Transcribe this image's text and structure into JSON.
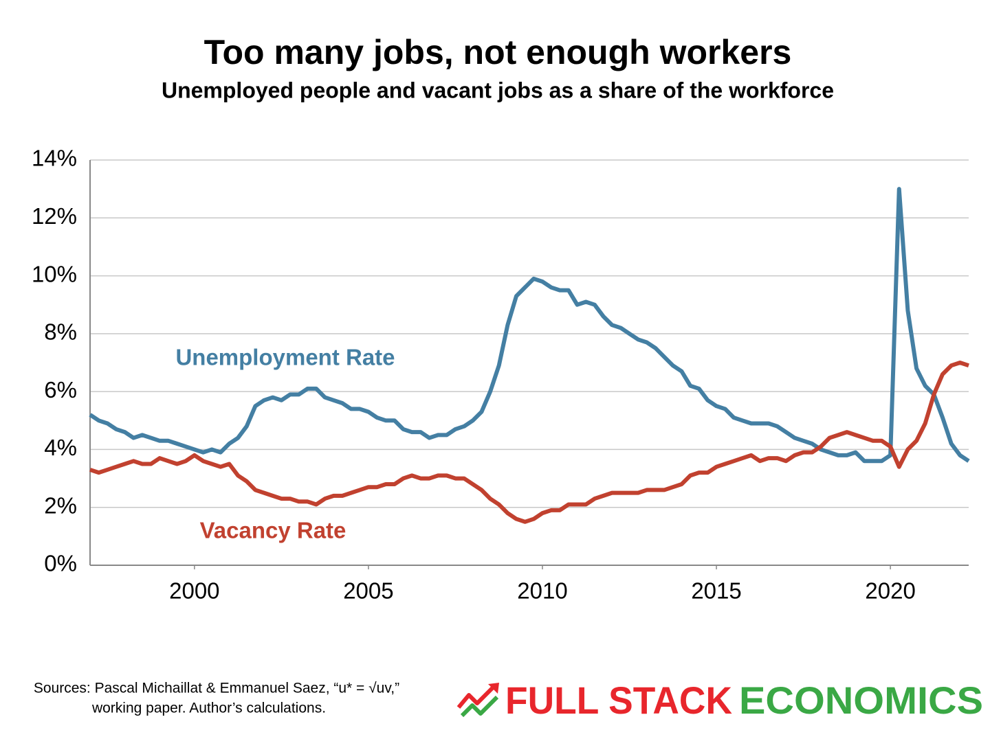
{
  "chart_data": {
    "type": "line",
    "title": "Too many jobs, not enough workers",
    "subtitle": "Unemployed people and vacant jobs as a share of the workforce",
    "x": [
      1997,
      1997.25,
      1997.5,
      1997.75,
      1998,
      1998.25,
      1998.5,
      1998.75,
      1999,
      1999.25,
      1999.5,
      1999.75,
      2000,
      2000.25,
      2000.5,
      2000.75,
      2001,
      2001.25,
      2001.5,
      2001.75,
      2002,
      2002.25,
      2002.5,
      2002.75,
      2003,
      2003.25,
      2003.5,
      2003.75,
      2004,
      2004.25,
      2004.5,
      2004.75,
      2005,
      2005.25,
      2005.5,
      2005.75,
      2006,
      2006.25,
      2006.5,
      2006.75,
      2007,
      2007.25,
      2007.5,
      2007.75,
      2008,
      2008.25,
      2008.5,
      2008.75,
      2009,
      2009.25,
      2009.5,
      2009.75,
      2010,
      2010.25,
      2010.5,
      2010.75,
      2011,
      2011.25,
      2011.5,
      2011.75,
      2012,
      2012.25,
      2012.5,
      2012.75,
      2013,
      2013.25,
      2013.5,
      2013.75,
      2014,
      2014.25,
      2014.5,
      2014.75,
      2015,
      2015.25,
      2015.5,
      2015.75,
      2016,
      2016.25,
      2016.5,
      2016.75,
      2017,
      2017.25,
      2017.5,
      2017.75,
      2018,
      2018.25,
      2018.5,
      2018.75,
      2019,
      2019.25,
      2019.5,
      2019.75,
      2020,
      2020.25,
      2020.5,
      2020.75,
      2021,
      2021.25,
      2021.5,
      2021.75,
      2022,
      2022.25
    ],
    "series": [
      {
        "name": "Unemployment Rate",
        "color": "#447fa3",
        "values": [
          5.2,
          5.0,
          4.9,
          4.7,
          4.6,
          4.4,
          4.5,
          4.4,
          4.3,
          4.3,
          4.2,
          4.1,
          4.0,
          3.9,
          4.0,
          3.9,
          4.2,
          4.4,
          4.8,
          5.5,
          5.7,
          5.8,
          5.7,
          5.9,
          5.9,
          6.1,
          6.1,
          5.8,
          5.7,
          5.6,
          5.4,
          5.4,
          5.3,
          5.1,
          5.0,
          5.0,
          4.7,
          4.6,
          4.6,
          4.4,
          4.5,
          4.5,
          4.7,
          4.8,
          5.0,
          5.3,
          6.0,
          6.9,
          8.3,
          9.3,
          9.6,
          9.9,
          9.8,
          9.6,
          9.5,
          9.5,
          9.0,
          9.1,
          9.0,
          8.6,
          8.3,
          8.2,
          8.0,
          7.8,
          7.7,
          7.5,
          7.2,
          6.9,
          6.7,
          6.2,
          6.1,
          5.7,
          5.5,
          5.4,
          5.1,
          5.0,
          4.9,
          4.9,
          4.9,
          4.8,
          4.6,
          4.4,
          4.3,
          4.2,
          4.0,
          3.9,
          3.8,
          3.8,
          3.9,
          3.6,
          3.6,
          3.6,
          3.8,
          13.0,
          8.8,
          6.8,
          6.2,
          5.9,
          5.1,
          4.2,
          3.8,
          3.6
        ]
      },
      {
        "name": "Vacancy Rate",
        "color": "#c1412f",
        "values": [
          3.3,
          3.2,
          3.3,
          3.4,
          3.5,
          3.6,
          3.5,
          3.5,
          3.7,
          3.6,
          3.5,
          3.6,
          3.8,
          3.6,
          3.5,
          3.4,
          3.5,
          3.1,
          2.9,
          2.6,
          2.5,
          2.4,
          2.3,
          2.3,
          2.2,
          2.2,
          2.1,
          2.3,
          2.4,
          2.4,
          2.5,
          2.6,
          2.7,
          2.7,
          2.8,
          2.8,
          3.0,
          3.1,
          3.0,
          3.0,
          3.1,
          3.1,
          3.0,
          3.0,
          2.8,
          2.6,
          2.3,
          2.1,
          1.8,
          1.6,
          1.5,
          1.6,
          1.8,
          1.9,
          1.9,
          2.1,
          2.1,
          2.1,
          2.3,
          2.4,
          2.5,
          2.5,
          2.5,
          2.5,
          2.6,
          2.6,
          2.6,
          2.7,
          2.8,
          3.1,
          3.2,
          3.2,
          3.4,
          3.5,
          3.6,
          3.7,
          3.8,
          3.6,
          3.7,
          3.7,
          3.6,
          3.8,
          3.9,
          3.9,
          4.1,
          4.4,
          4.5,
          4.6,
          4.5,
          4.4,
          4.3,
          4.3,
          4.1,
          3.4,
          4.0,
          4.3,
          4.9,
          5.9,
          6.6,
          6.9,
          7.0,
          6.9
        ]
      }
    ],
    "xlim": [
      1997,
      2022.25
    ],
    "xticks": [
      2000,
      2005,
      2010,
      2015,
      2020
    ],
    "ylim": [
      0,
      14
    ],
    "yticks": [
      {
        "value": 0,
        "label": "0%"
      },
      {
        "value": 2,
        "label": "2%"
      },
      {
        "value": 4,
        "label": "4%"
      },
      {
        "value": 6,
        "label": "6%"
      },
      {
        "value": 8,
        "label": "8%"
      },
      {
        "value": 10,
        "label": "10%"
      },
      {
        "value": 12,
        "label": "12%"
      },
      {
        "value": 14,
        "label": "14%"
      }
    ],
    "grid": true,
    "sources": [
      "Sources: Pascal Michaillat & Emmanuel Saez, “u* = √uv,”",
      "working paper. Author’s calculations."
    ],
    "logo": {
      "part1": "FULL STACK",
      "part2": "ECONOMICS"
    }
  }
}
